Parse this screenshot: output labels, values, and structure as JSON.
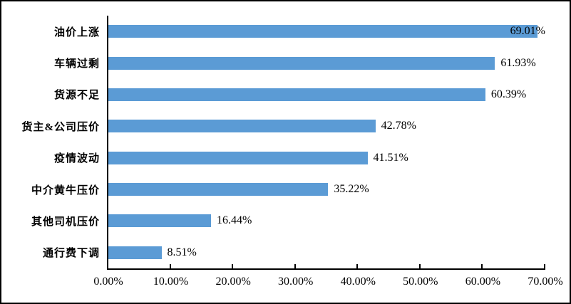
{
  "chart_data": {
    "type": "bar",
    "orientation": "horizontal",
    "title": "",
    "categories": [
      "油价上涨",
      "车辆过剩",
      "货源不足",
      "货主&公司压价",
      "疫情波动",
      "中介黄牛压价",
      "其他司机压价",
      "通行费下调"
    ],
    "values": [
      69.01,
      61.93,
      60.39,
      42.78,
      41.51,
      35.22,
      16.44,
      8.51
    ],
    "value_labels": [
      "69.01%",
      "61.93%",
      "60.39%",
      "42.78%",
      "41.51%",
      "35.22%",
      "16.44%",
      "8.51%"
    ],
    "x_ticks": [
      "0.00%",
      "10.00%",
      "20.00%",
      "30.00%",
      "40.00%",
      "50.00%",
      "60.00%",
      "70.00%"
    ],
    "xlim": [
      0,
      70
    ],
    "grid": false,
    "legend": false,
    "bar_color": "#5B9BD5",
    "axis_color": "#000000",
    "text_color": "#000000"
  }
}
